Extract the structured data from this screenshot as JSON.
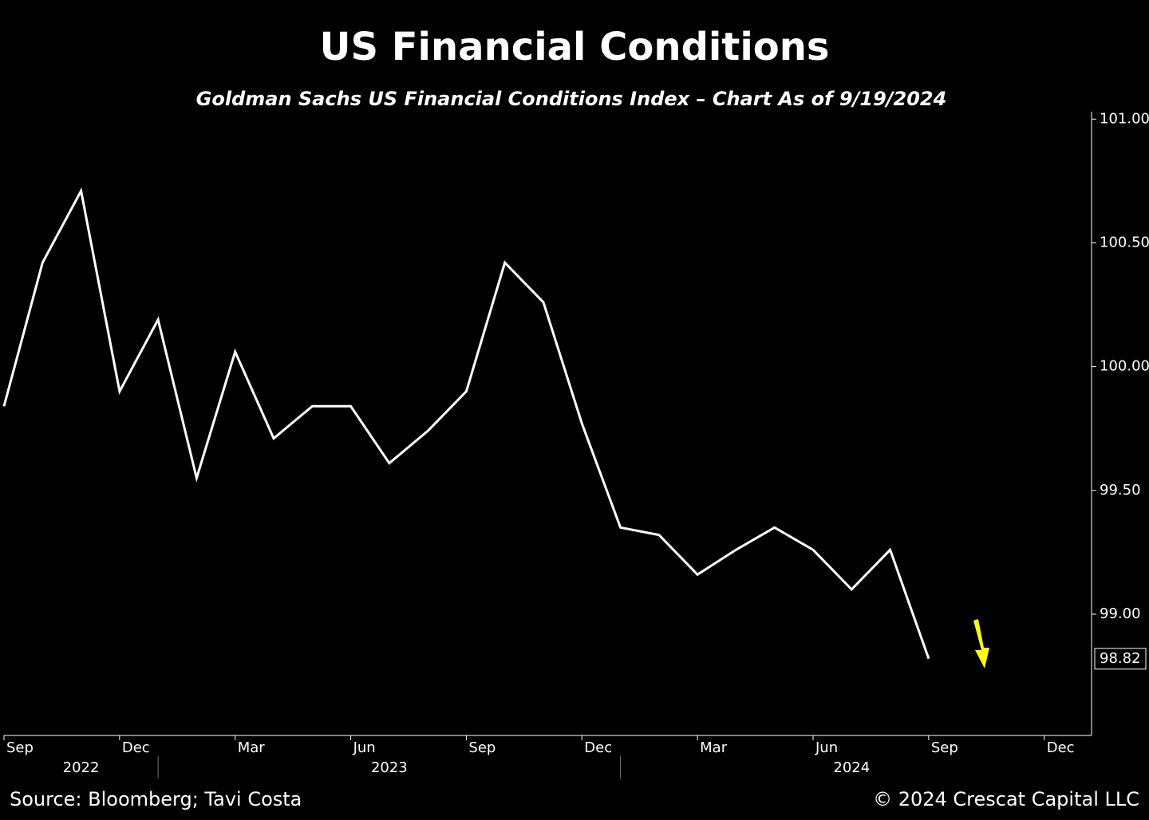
{
  "chart_data": {
    "type": "line",
    "title": "US Financial Conditions",
    "subtitle": "Goldman Sachs US Financial Conditions Index – Chart As of 9/19/2024",
    "x": [
      "2022-09",
      "2022-10",
      "2022-11",
      "2022-12",
      "2023-01",
      "2023-02",
      "2023-03",
      "2023-04",
      "2023-05",
      "2023-06",
      "2023-07",
      "2023-08",
      "2023-09",
      "2023-10",
      "2023-11",
      "2023-12",
      "2024-01",
      "2024-02",
      "2024-03",
      "2024-04",
      "2024-05",
      "2024-06",
      "2024-07",
      "2024-08",
      "2024-09"
    ],
    "series": [
      {
        "name": "Goldman Sachs US Financial Conditions Index",
        "color": "#ffffff",
        "values": [
          99.84,
          100.42,
          100.71,
          99.9,
          100.19,
          99.55,
          100.06,
          99.71,
          99.84,
          99.84,
          99.61,
          99.74,
          99.9,
          100.42,
          100.26,
          99.77,
          99.35,
          99.32,
          99.16,
          99.26,
          99.35,
          99.26,
          99.1,
          99.26,
          98.82
        ]
      }
    ],
    "xlim": [
      "2022-09",
      "2025-01"
    ],
    "xticks": [
      {
        "value": "2022-09",
        "label": "Sep"
      },
      {
        "value": "2022-12",
        "label": "Dec"
      },
      {
        "value": "2023-03",
        "label": "Mar"
      },
      {
        "value": "2023-06",
        "label": "Jun"
      },
      {
        "value": "2023-09",
        "label": "Sep"
      },
      {
        "value": "2023-12",
        "label": "Dec"
      },
      {
        "value": "2024-03",
        "label": "Mar"
      },
      {
        "value": "2024-06",
        "label": "Jun"
      },
      {
        "value": "2024-09",
        "label": "Sep"
      },
      {
        "value": "2024-12",
        "label": "Dec"
      }
    ],
    "years": [
      "2022",
      "2023",
      "2024"
    ],
    "ylim": [
      98.51,
      101.03
    ],
    "yticks": [
      {
        "value": 99,
        "label": "99.00"
      },
      {
        "value": 99.5,
        "label": "99.50"
      },
      {
        "value": 100,
        "label": "100.00"
      },
      {
        "value": 100.5,
        "label": "100.50"
      },
      {
        "value": 101,
        "label": "101.00"
      }
    ],
    "source": "Source: Bloomberg; Tavi Costa",
    "copyright": "© 2024 Crescat Capital LLC"
  }
}
